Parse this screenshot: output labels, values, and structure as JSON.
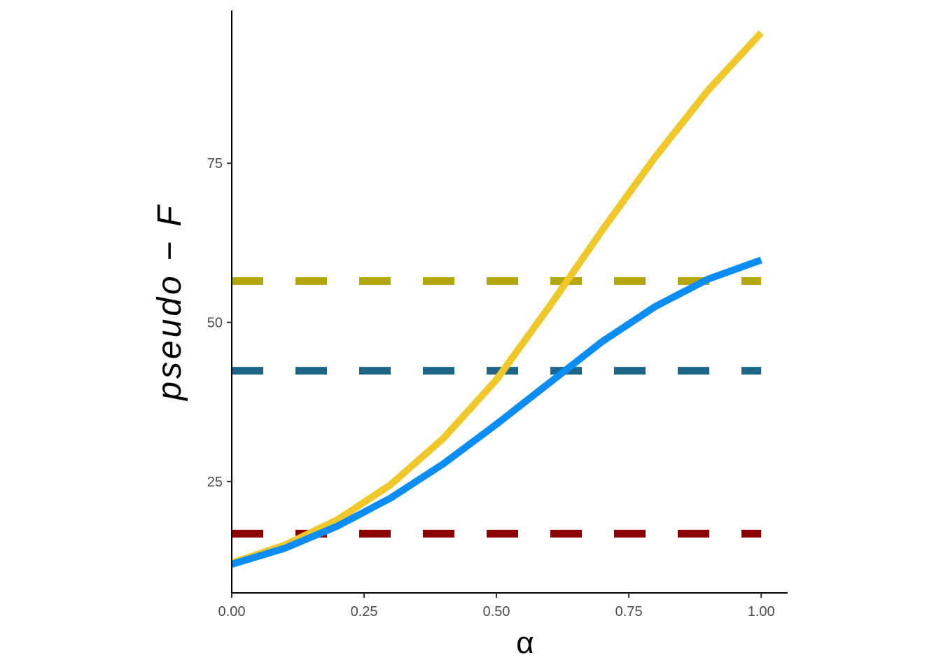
{
  "chart_data": {
    "type": "line",
    "title": "",
    "xlabel": "α",
    "ylabel": "pseudo − F",
    "xlim": [
      0,
      1.05
    ],
    "ylim": [
      7.5,
      99
    ],
    "grid": false,
    "legend": "none",
    "x_ticks": [
      {
        "value": 0,
        "label": "0.00"
      },
      {
        "value": 0.25,
        "label": "0.25"
      },
      {
        "value": 0.5,
        "label": "0.50"
      },
      {
        "value": 0.75,
        "label": "0.75"
      },
      {
        "value": 1,
        "label": "1.00"
      }
    ],
    "y_ticks": [
      {
        "value": 25,
        "label": "25"
      },
      {
        "value": 50,
        "label": "50"
      },
      {
        "value": 75,
        "label": "75"
      }
    ],
    "x": [
      0,
      0.1,
      0.2,
      0.3,
      0.4,
      0.5,
      0.6,
      0.7,
      0.8,
      0.9,
      1.0
    ],
    "series": [
      {
        "color": "#F1C82A",
        "values": [
          12.2,
          15.0,
          19.0,
          24.5,
          31.8,
          41.0,
          52.5,
          64.5,
          76.0,
          86.5,
          95.5
        ]
      },
      {
        "color": "#0A8EF5",
        "values": [
          12.0,
          14.5,
          18.0,
          22.4,
          27.8,
          34.0,
          40.5,
          47.0,
          52.5,
          56.8,
          59.8
        ]
      }
    ],
    "reference_lines": [
      {
        "color": "#B5A70E",
        "y": 56.5
      },
      {
        "color": "#1E6587",
        "y": 42.4
      },
      {
        "color": "#8B0000",
        "y": 16.8
      }
    ]
  }
}
